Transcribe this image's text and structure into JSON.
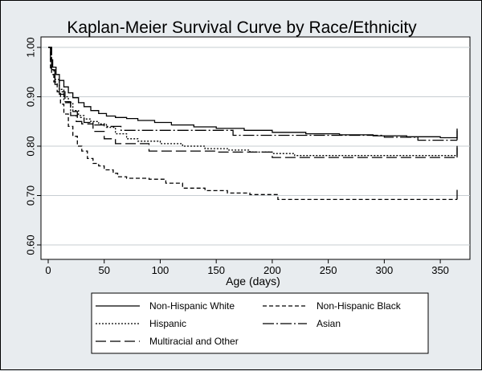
{
  "chart_data": {
    "type": "line",
    "title": "Kaplan-Meier Survival Curve by Race/Ethnicity",
    "xlabel": "Age (days)",
    "ylabel": "",
    "xlim": [
      0,
      365
    ],
    "ylim": [
      0.6,
      1.0
    ],
    "xticks": [
      0,
      50,
      100,
      150,
      200,
      250,
      300,
      350
    ],
    "yticks": [
      0.6,
      0.7,
      0.8,
      0.9,
      1.0
    ],
    "ytick_labels": [
      "0.60",
      "0.70",
      "0.80",
      "0.90",
      "1.00"
    ],
    "grid": "horizontal",
    "legend_position": "bottom",
    "series": [
      {
        "name": "Non-Hispanic White",
        "dash": "solid",
        "x": [
          0,
          2,
          4,
          7,
          10,
          14,
          18,
          22,
          27,
          32,
          38,
          45,
          52,
          60,
          70,
          80,
          95,
          110,
          130,
          150,
          175,
          200,
          230,
          260,
          290,
          320,
          350,
          365
        ],
        "y": [
          1.0,
          0.975,
          0.96,
          0.945,
          0.933,
          0.92,
          0.908,
          0.898,
          0.888,
          0.88,
          0.872,
          0.866,
          0.861,
          0.858,
          0.856,
          0.852,
          0.848,
          0.843,
          0.839,
          0.836,
          0.832,
          0.828,
          0.825,
          0.823,
          0.821,
          0.819,
          0.817,
          0.816
        ]
      },
      {
        "name": "Non-Hispanic Black",
        "dash": "short-dash",
        "x": [
          0,
          2,
          5,
          8,
          11,
          14,
          18,
          22,
          26,
          30,
          35,
          40,
          45,
          50,
          58,
          62,
          70,
          80,
          90,
          105,
          120,
          140,
          160,
          180,
          205,
          250,
          300,
          365
        ],
        "y": [
          1.0,
          0.955,
          0.93,
          0.91,
          0.885,
          0.865,
          0.84,
          0.82,
          0.8,
          0.79,
          0.775,
          0.765,
          0.76,
          0.752,
          0.745,
          0.738,
          0.735,
          0.735,
          0.733,
          0.725,
          0.715,
          0.71,
          0.705,
          0.702,
          0.692,
          0.692,
          0.692,
          0.692
        ]
      },
      {
        "name": "Hispanic",
        "dash": "dotted",
        "x": [
          0,
          3,
          6,
          10,
          14,
          18,
          22,
          27,
          32,
          38,
          45,
          52,
          60,
          70,
          80,
          90,
          100,
          120,
          140,
          160,
          180,
          200,
          220,
          250,
          300,
          365
        ],
        "y": [
          1.0,
          0.955,
          0.935,
          0.915,
          0.9,
          0.888,
          0.872,
          0.862,
          0.855,
          0.85,
          0.845,
          0.838,
          0.825,
          0.815,
          0.81,
          0.81,
          0.805,
          0.8,
          0.795,
          0.792,
          0.788,
          0.785,
          0.781,
          0.781,
          0.781,
          0.781
        ]
      },
      {
        "name": "Asian",
        "dash": "dash-dot",
        "x": [
          0,
          3,
          6,
          10,
          14,
          20,
          26,
          32,
          40,
          50,
          65,
          80,
          100,
          130,
          165,
          200,
          250,
          300,
          330,
          365
        ],
        "y": [
          1.0,
          0.945,
          0.925,
          0.905,
          0.89,
          0.87,
          0.858,
          0.848,
          0.843,
          0.84,
          0.832,
          0.832,
          0.832,
          0.832,
          0.822,
          0.822,
          0.822,
          0.818,
          0.812,
          0.812
        ]
      },
      {
        "name": "Multiracial and Other",
        "dash": "long-dash",
        "x": [
          0,
          3,
          6,
          10,
          15,
          20,
          25,
          30,
          40,
          50,
          60,
          70,
          90,
          110,
          150,
          200,
          250,
          300,
          365
        ],
        "y": [
          1.0,
          0.955,
          0.935,
          0.91,
          0.888,
          0.862,
          0.85,
          0.845,
          0.83,
          0.815,
          0.805,
          0.805,
          0.79,
          0.79,
          0.788,
          0.777,
          0.777,
          0.777,
          0.777
        ]
      }
    ]
  }
}
